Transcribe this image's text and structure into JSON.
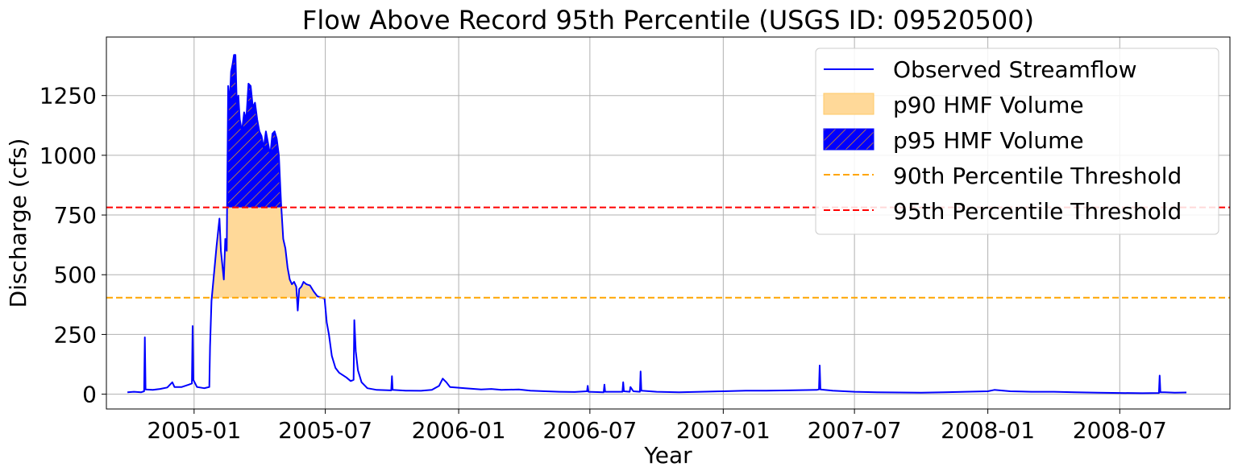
{
  "chart_data": {
    "type": "line",
    "title": "Flow Above Record 95th Percentile (USGS ID: 09520500)",
    "xlabel": "Year",
    "ylabel": "Discharge (cfs)",
    "xlim": [
      "2004-09-02",
      "2008-11-30"
    ],
    "ylim": [
      -62,
      1495
    ],
    "x_ticks": [
      "2005-01",
      "2005-07",
      "2006-01",
      "2006-07",
      "2007-01",
      "2007-07",
      "2008-01",
      "2008-07"
    ],
    "y_ticks": [
      0,
      250,
      500,
      750,
      1000,
      1250
    ],
    "grid": true,
    "legend_position": "top-right",
    "legend": [
      {
        "label": "Observed Streamflow",
        "kind": "line",
        "color": "#0000ff"
      },
      {
        "label": "p90 HMF Volume",
        "kind": "fill",
        "color": "#ffd999"
      },
      {
        "label": "p95 HMF Volume",
        "kind": "hatch",
        "color": "#0000ff"
      },
      {
        "label": "90th Percentile Threshold",
        "kind": "dashed",
        "color": "#ffa500"
      },
      {
        "label": "95th Percentile Threshold",
        "kind": "dashed",
        "color": "#ff0000"
      }
    ],
    "thresholds": {
      "p90": 404,
      "p95": 782
    },
    "series": [
      {
        "name": "Observed Streamflow",
        "color": "#0000ff",
        "points": [
          [
            "2004-10-01",
            8
          ],
          [
            "2004-10-10",
            10
          ],
          [
            "2004-10-20",
            8
          ],
          [
            "2004-10-24",
            12
          ],
          [
            "2004-10-25",
            238
          ],
          [
            "2004-10-26",
            20
          ],
          [
            "2004-11-05",
            18
          ],
          [
            "2004-11-15",
            22
          ],
          [
            "2004-11-25",
            28
          ],
          [
            "2004-12-02",
            50
          ],
          [
            "2004-12-05",
            30
          ],
          [
            "2004-12-15",
            30
          ],
          [
            "2004-12-25",
            40
          ],
          [
            "2004-12-29",
            45
          ],
          [
            "2004-12-30",
            285
          ],
          [
            "2004-12-31",
            60
          ],
          [
            "2005-01-05",
            30
          ],
          [
            "2005-01-15",
            25
          ],
          [
            "2005-01-22",
            30
          ],
          [
            "2005-01-23",
            200
          ],
          [
            "2005-01-25",
            390
          ],
          [
            "2005-02-01",
            620
          ],
          [
            "2005-02-05",
            735
          ],
          [
            "2005-02-07",
            600
          ],
          [
            "2005-02-11",
            480
          ],
          [
            "2005-02-13",
            650
          ],
          [
            "2005-02-15",
            600
          ],
          [
            "2005-02-17",
            1290
          ],
          [
            "2005-02-19",
            1210
          ],
          [
            "2005-02-21",
            1350
          ],
          [
            "2005-02-23",
            1380
          ],
          [
            "2005-02-25",
            1420
          ],
          [
            "2005-02-27",
            1420
          ],
          [
            "2005-03-01",
            1200
          ],
          [
            "2005-03-03",
            1250
          ],
          [
            "2005-03-05",
            1150
          ],
          [
            "2005-03-08",
            1100
          ],
          [
            "2005-03-11",
            1180
          ],
          [
            "2005-03-14",
            1150
          ],
          [
            "2005-03-17",
            1300
          ],
          [
            "2005-03-20",
            1290
          ],
          [
            "2005-03-23",
            1200
          ],
          [
            "2005-03-26",
            1220
          ],
          [
            "2005-03-29",
            1150
          ],
          [
            "2005-04-01",
            1100
          ],
          [
            "2005-04-04",
            1080
          ],
          [
            "2005-04-07",
            1030
          ],
          [
            "2005-04-10",
            1100
          ],
          [
            "2005-04-13",
            1050
          ],
          [
            "2005-04-16",
            1000
          ],
          [
            "2005-04-19",
            1090
          ],
          [
            "2005-04-22",
            1100
          ],
          [
            "2005-04-25",
            1070
          ],
          [
            "2005-04-28",
            1000
          ],
          [
            "2005-05-01",
            800
          ],
          [
            "2005-05-04",
            650
          ],
          [
            "2005-05-07",
            610
          ],
          [
            "2005-05-10",
            530
          ],
          [
            "2005-05-13",
            480
          ],
          [
            "2005-05-16",
            460
          ],
          [
            "2005-05-19",
            470
          ],
          [
            "2005-05-22",
            450
          ],
          [
            "2005-05-24",
            350
          ],
          [
            "2005-05-26",
            440
          ],
          [
            "2005-05-29",
            450
          ],
          [
            "2005-06-01",
            470
          ],
          [
            "2005-06-05",
            460
          ],
          [
            "2005-06-10",
            455
          ],
          [
            "2005-06-15",
            430
          ],
          [
            "2005-06-20",
            410
          ],
          [
            "2005-06-25",
            405
          ],
          [
            "2005-06-30",
            400
          ],
          [
            "2005-07-03",
            300
          ],
          [
            "2005-07-06",
            250
          ],
          [
            "2005-07-10",
            160
          ],
          [
            "2005-07-15",
            110
          ],
          [
            "2005-07-20",
            90
          ],
          [
            "2005-07-30",
            70
          ],
          [
            "2005-08-05",
            55
          ],
          [
            "2005-08-09",
            60
          ],
          [
            "2005-08-10",
            310
          ],
          [
            "2005-08-12",
            180
          ],
          [
            "2005-08-15",
            100
          ],
          [
            "2005-08-20",
            50
          ],
          [
            "2005-08-28",
            25
          ],
          [
            "2005-09-10",
            18
          ],
          [
            "2005-09-30",
            16
          ],
          [
            "2005-10-01",
            75
          ],
          [
            "2005-10-02",
            18
          ],
          [
            "2005-10-20",
            15
          ],
          [
            "2005-11-10",
            14
          ],
          [
            "2005-11-25",
            18
          ],
          [
            "2005-12-05",
            35
          ],
          [
            "2005-12-10",
            65
          ],
          [
            "2005-12-15",
            50
          ],
          [
            "2005-12-20",
            30
          ],
          [
            "2006-01-10",
            25
          ],
          [
            "2006-02-01",
            20
          ],
          [
            "2006-02-15",
            22
          ],
          [
            "2006-03-01",
            18
          ],
          [
            "2006-03-25",
            20
          ],
          [
            "2006-04-10",
            15
          ],
          [
            "2006-05-01",
            12
          ],
          [
            "2006-05-20",
            10
          ],
          [
            "2006-06-10",
            9
          ],
          [
            "2006-06-27",
            12
          ],
          [
            "2006-06-28",
            35
          ],
          [
            "2006-06-29",
            10
          ],
          [
            "2006-07-20",
            8
          ],
          [
            "2006-07-21",
            40
          ],
          [
            "2006-07-22",
            10
          ],
          [
            "2006-08-15",
            10
          ],
          [
            "2006-08-16",
            50
          ],
          [
            "2006-08-17",
            12
          ],
          [
            "2006-08-25",
            10
          ],
          [
            "2006-08-26",
            30
          ],
          [
            "2006-08-30",
            12
          ],
          [
            "2006-09-08",
            10
          ],
          [
            "2006-09-09",
            95
          ],
          [
            "2006-09-10",
            15
          ],
          [
            "2006-10-01",
            10
          ],
          [
            "2006-11-01",
            8
          ],
          [
            "2006-12-01",
            10
          ],
          [
            "2007-01-01",
            12
          ],
          [
            "2007-02-01",
            15
          ],
          [
            "2007-03-01",
            15
          ],
          [
            "2007-04-01",
            16
          ],
          [
            "2007-05-10",
            18
          ],
          [
            "2007-05-13",
            20
          ],
          [
            "2007-05-14",
            120
          ],
          [
            "2007-05-15",
            20
          ],
          [
            "2007-06-01",
            15
          ],
          [
            "2007-07-01",
            10
          ],
          [
            "2007-08-01",
            8
          ],
          [
            "2007-09-01",
            7
          ],
          [
            "2007-10-01",
            6
          ],
          [
            "2007-11-01",
            8
          ],
          [
            "2007-12-01",
            10
          ],
          [
            "2008-01-01",
            12
          ],
          [
            "2008-01-10",
            18
          ],
          [
            "2008-02-01",
            12
          ],
          [
            "2008-03-01",
            10
          ],
          [
            "2008-04-01",
            10
          ],
          [
            "2008-05-01",
            8
          ],
          [
            "2008-06-01",
            6
          ],
          [
            "2008-07-01",
            5
          ],
          [
            "2008-08-01",
            4
          ],
          [
            "2008-08-24",
            5
          ],
          [
            "2008-08-25",
            78
          ],
          [
            "2008-08-26",
            8
          ],
          [
            "2008-09-01",
            8
          ],
          [
            "2008-09-15",
            6
          ],
          [
            "2008-10-01",
            7
          ]
        ]
      }
    ]
  }
}
